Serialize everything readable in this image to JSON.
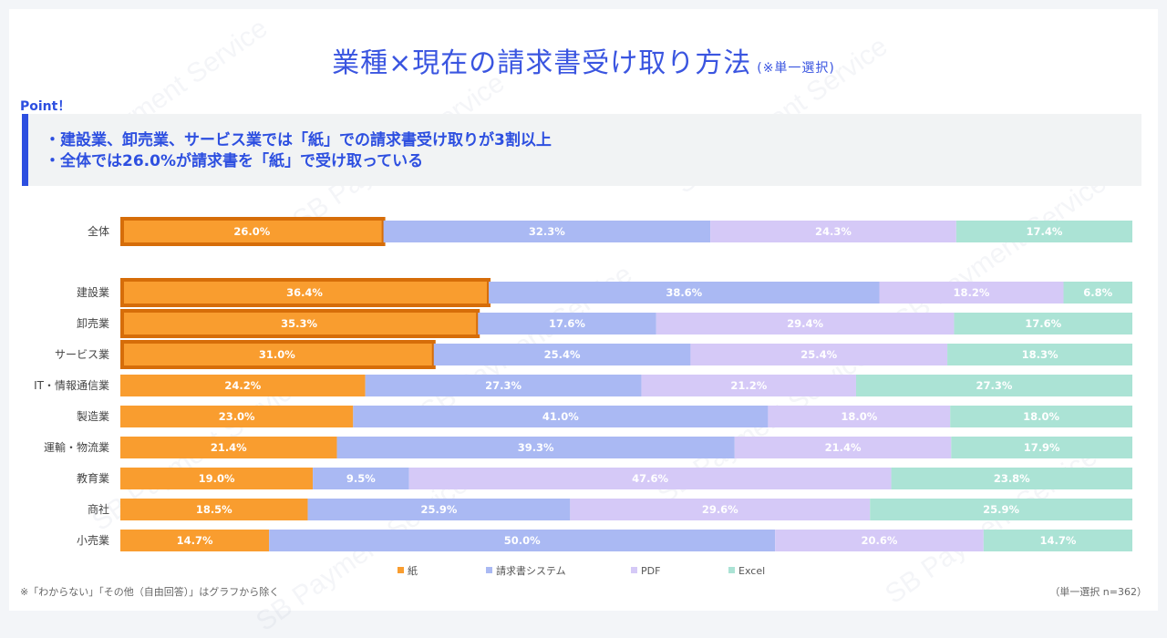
{
  "title": "業種×現在の請求書受け取り方法",
  "title_note": "(※単一選択)",
  "point_label": "Point！",
  "points": [
    "・建設業、卸売業、サービス業では「紙」での請求書受け取りが3割以上",
    "・全体では26.0%が請求書を「紙」で受け取っている"
  ],
  "footnote": "※「わからない」「その他（自由回答）」はグラフから除く",
  "sample_note": "（単一選択 n=362）",
  "watermark": "SB Payment Service",
  "chart_data": {
    "type": "bar",
    "orientation": "horizontal",
    "stacked": true,
    "categories": [
      "全体",
      "建設業",
      "卸売業",
      "サービス業",
      "IT・情報通信業",
      "製造業",
      "運輸・物流業",
      "教育業",
      "商社",
      "小売業"
    ],
    "series": [
      {
        "name": "紙",
        "color": "#f99d2f",
        "values": [
          26.0,
          36.4,
          35.3,
          31.0,
          24.2,
          23.0,
          21.4,
          19.0,
          18.5,
          14.7
        ]
      },
      {
        "name": "請求書システム",
        "color": "#aab9f3",
        "values": [
          32.3,
          38.6,
          17.6,
          25.4,
          27.3,
          41.0,
          39.3,
          9.5,
          25.9,
          50.0
        ]
      },
      {
        "name": "PDF",
        "color": "#d5c9f7",
        "values": [
          24.3,
          18.2,
          29.4,
          25.4,
          21.2,
          18.0,
          21.4,
          47.6,
          29.6,
          20.6
        ]
      },
      {
        "name": "Excel",
        "color": "#abe3d5",
        "values": [
          17.4,
          6.8,
          17.6,
          18.3,
          27.3,
          18.0,
          17.9,
          23.8,
          25.9,
          14.7
        ]
      }
    ],
    "highlighted_categories": [
      "全体",
      "建設業",
      "卸売業",
      "サービス業"
    ],
    "highlight_color": "#d66d09",
    "label_suffix": "%",
    "legend_position": "bottom",
    "grid": false
  }
}
